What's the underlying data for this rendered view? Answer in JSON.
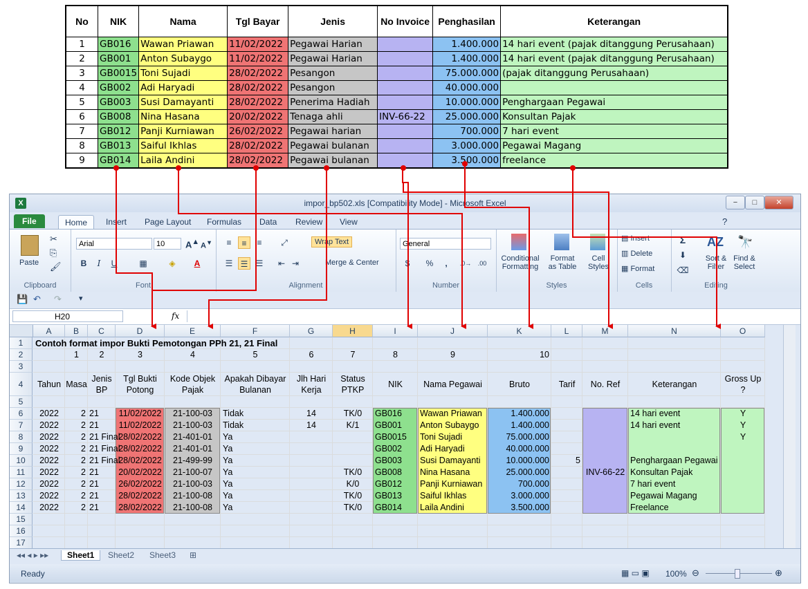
{
  "source_table": {
    "headers": [
      "No",
      "NIK",
      "Nama",
      "Tgl Bayar",
      "Jenis",
      "No Invoice",
      "Penghasilan",
      "Keterangan"
    ],
    "rows": [
      [
        "1",
        "GB016",
        "Wawan Priawan",
        "11/02/2022",
        "Pegawai Harian",
        "",
        "1.400.000",
        "14 hari event (pajak ditanggung Perusahaan)"
      ],
      [
        "2",
        "GB001",
        "Anton Subaygo",
        "11/02/2022",
        "Pegawai Harian",
        "",
        "1.400.000",
        "14 hari event (pajak ditanggung Perusahaan)"
      ],
      [
        "3",
        "GB0015",
        "Toni Sujadi",
        "28/02/2022",
        "Pesangon",
        "",
        "75.000.000",
        "(pajak ditanggung Perusahaan)"
      ],
      [
        "4",
        "GB002",
        "Adi Haryadi",
        "28/02/2022",
        "Pesangon",
        "",
        "40.000.000",
        ""
      ],
      [
        "5",
        "GB003",
        "Susi Damayanti",
        "28/02/2022",
        "Penerima Hadiah",
        "",
        "10.000.000",
        "Penghargaan Pegawai"
      ],
      [
        "6",
        "GB008",
        "Nina Hasana",
        "20/02/2022",
        "Tenaga ahli",
        "INV-66-22",
        "25.000.000",
        "Konsultan Pajak"
      ],
      [
        "7",
        "GB012",
        "Panji Kurniawan",
        "26/02/2022",
        "Pegawai harian",
        "",
        "700.000",
        "7 hari event"
      ],
      [
        "8",
        "GB013",
        "Saiful Ikhlas",
        "28/02/2022",
        "Pegawai bulanan",
        "",
        "3.000.000",
        "Pegawai Magang"
      ],
      [
        "9",
        "GB014",
        "Laila Andini",
        "28/02/2022",
        "Pegawai bulanan",
        "",
        "3.500.000",
        "freelance"
      ]
    ]
  },
  "window": {
    "title": "impor_bp502.xls  [Compatibility Mode]  -  Microsoft Excel",
    "minimize": "−",
    "restore": "□",
    "close": "✕"
  },
  "tabs": [
    "File",
    "Home",
    "Insert",
    "Page Layout",
    "Formulas",
    "Data",
    "Review",
    "View"
  ],
  "ribbon": {
    "paste": "Paste",
    "clipboard": "Clipboard",
    "font_name": "Arial",
    "font_size": "10",
    "font": "Font",
    "wrap_text": "Wrap Text",
    "merge_center": "Merge & Center",
    "alignment": "Alignment",
    "number_format": "General",
    "number": "Number",
    "conditional_formatting": "Conditional Formatting",
    "format_as_table": "Format as Table",
    "cell_styles": "Cell Styles",
    "styles": "Styles",
    "insert": "Insert",
    "delete": "Delete",
    "format": "Format",
    "cells": "Cells",
    "sort_filter": "Sort & Filter",
    "find_select": "Find & Select",
    "editing": "Editing",
    "bold": "B",
    "italic": "I",
    "underline": "U",
    "percent": "%",
    "comma": ","
  },
  "formula_bar": {
    "name_box": "H20",
    "fx": "fx",
    "value": ""
  },
  "columns": [
    "A",
    "B",
    "C",
    "D",
    "E",
    "F",
    "G",
    "H",
    "I",
    "J",
    "K",
    "L",
    "M",
    "N",
    "O"
  ],
  "sheet": {
    "title_row": "Contoh format impor Bukti Pemotongan PPh 21, 21 Final",
    "numbers_row": [
      "1",
      "2",
      "3",
      "4",
      "5",
      "6",
      "7",
      "8",
      "9",
      "10"
    ],
    "headers": [
      "Tahun",
      "Masa",
      "Jenis BP",
      "Tgl Bukti Potong",
      "Kode Objek Pajak",
      "Apakah Dibayar Bulanan",
      "Jlh Hari Kerja",
      "Status PTKP",
      "NIK",
      "Nama Pegawai",
      "Bruto",
      "Tarif",
      "No. Ref",
      "Keterangan",
      "Gross Up ?"
    ],
    "rows": [
      [
        "2022",
        "2",
        "21",
        "11/02/2022",
        "21-100-03",
        "Tidak",
        "14",
        "TK/0",
        "GB016",
        "Wawan Priawan",
        "1.400.000",
        "",
        "",
        "14 hari event",
        "Y"
      ],
      [
        "2022",
        "2",
        "21",
        "11/02/2022",
        "21-100-03",
        "Tidak",
        "14",
        "K/1",
        "GB001",
        "Anton Subaygo",
        "1.400.000",
        "",
        "",
        "14 hari event",
        "Y"
      ],
      [
        "2022",
        "2",
        "21 Final",
        "28/02/2022",
        "21-401-01",
        "Ya",
        "",
        "",
        "GB0015",
        "Toni Sujadi",
        "75.000.000",
        "",
        "",
        "",
        "Y"
      ],
      [
        "2022",
        "2",
        "21 Final",
        "28/02/2022",
        "21-401-01",
        "Ya",
        "",
        "",
        "GB002",
        "Adi Haryadi",
        "40.000.000",
        "",
        "",
        "",
        ""
      ],
      [
        "2022",
        "2",
        "21 Final",
        "28/02/2022",
        "21-499-99",
        "Ya",
        "",
        "",
        "GB003",
        "Susi Damayanti",
        "10.000.000",
        "5",
        "",
        "Penghargaan Pegawai",
        ""
      ],
      [
        "2022",
        "2",
        "21",
        "20/02/2022",
        "21-100-07",
        "Ya",
        "",
        "TK/0",
        "GB008",
        "Nina Hasana",
        "25.000.000",
        "",
        "INV-66-22",
        "Konsultan Pajak",
        ""
      ],
      [
        "2022",
        "2",
        "21",
        "26/02/2022",
        "21-100-03",
        "Ya",
        "",
        "K/0",
        "GB012",
        "Panji Kurniawan",
        "700.000",
        "",
        "",
        "7 hari event",
        ""
      ],
      [
        "2022",
        "2",
        "21",
        "28/02/2022",
        "21-100-08",
        "Ya",
        "",
        "TK/0",
        "GB013",
        "Saiful Ikhlas",
        "3.000.000",
        "",
        "",
        "Pegawai Magang",
        ""
      ],
      [
        "2022",
        "2",
        "21",
        "28/02/2022",
        "21-100-08",
        "Ya",
        "",
        "TK/0",
        "GB014",
        "Laila Andini",
        "3.500.000",
        "",
        "",
        "Freelance",
        ""
      ]
    ]
  },
  "sheet_tabs": [
    "Sheet1",
    "Sheet2",
    "Sheet3"
  ],
  "status": {
    "ready": "Ready",
    "zoom": "100%"
  },
  "colors": {
    "nik": "#8ee08e",
    "name": "#ffff80",
    "date": "#ef7474",
    "code": "#c6c6c6",
    "ref": "#b7b3f2",
    "bruto": "#8cc2f2",
    "note": "#bff5bf",
    "arrow": "#e00000"
  }
}
